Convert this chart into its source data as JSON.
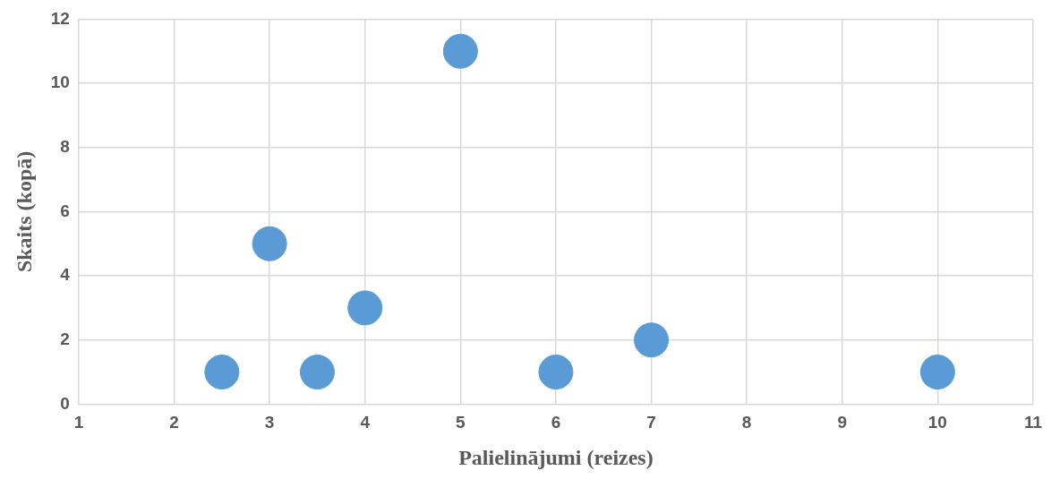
{
  "chart_data": {
    "type": "scatter",
    "xlabel": "Palielinājumi (reizes)",
    "ylabel": "Skaits (kopā)",
    "x": [
      2.5,
      3,
      3.5,
      4,
      5,
      6,
      7,
      10
    ],
    "series": [
      {
        "color": "#5b9bd5",
        "values": [
          1,
          5,
          1,
          3,
          11,
          1,
          2,
          1
        ]
      }
    ],
    "xlim": [
      1,
      11
    ],
    "xticks": [
      1,
      2,
      3,
      4,
      5,
      6,
      7,
      8,
      9,
      10,
      11
    ],
    "ylim": [
      0,
      12
    ],
    "yticks": [
      0,
      2,
      4,
      6,
      8,
      10,
      12
    ],
    "grid": true,
    "legend": false,
    "marker": "circle"
  }
}
